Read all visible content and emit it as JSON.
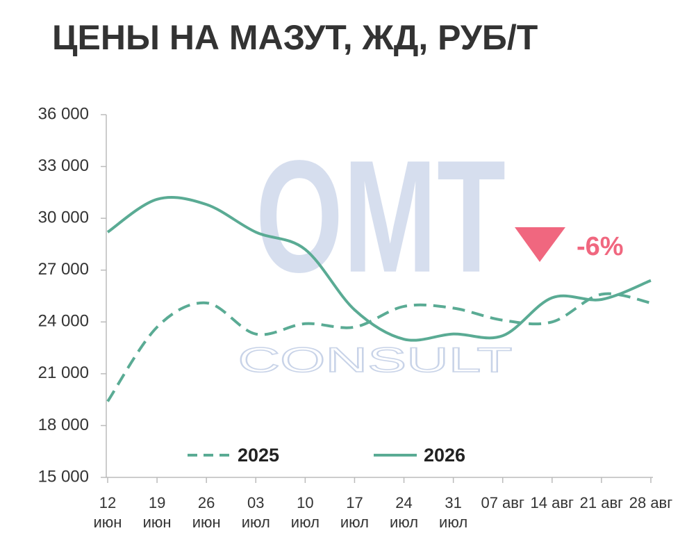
{
  "chart_data": {
    "type": "line",
    "title": "ЦЕНЫ НА МАЗУТ, ЖД, РУБ/Т",
    "categories": [
      "12 июн",
      "19 июн",
      "26 июн",
      "03 июл",
      "10 июл",
      "17 июл",
      "24 июл",
      "31 июл",
      "07 авг",
      "14 авг",
      "21 авг",
      "28 авг"
    ],
    "series": [
      {
        "name": "2025",
        "color": "#5aab94",
        "dashed": true,
        "values": [
          19400,
          23700,
          25100,
          23300,
          23900,
          23700,
          24900,
          24800,
          24100,
          24000,
          25600,
          25100
        ]
      },
      {
        "name": "2026",
        "color": "#5aab94",
        "dashed": false,
        "values": [
          29200,
          31100,
          30800,
          29200,
          28200,
          24700,
          23000,
          23300,
          23200,
          25400,
          25300,
          26400
        ]
      }
    ],
    "ylim": [
      15000,
      36000
    ],
    "yticks": [
      {
        "value": 15000,
        "label": "15 000"
      },
      {
        "value": 18000,
        "label": "18 000"
      },
      {
        "value": 21000,
        "label": "21 000"
      },
      {
        "value": 24000,
        "label": "24 000"
      },
      {
        "value": 27000,
        "label": "27 000"
      },
      {
        "value": 30000,
        "label": "30 000"
      },
      {
        "value": 33000,
        "label": "33 000"
      },
      {
        "value": 36000,
        "label": "36 000"
      }
    ],
    "grid": false,
    "legend": "bottom",
    "annotation": "-6%",
    "annotation_color": "#f0677f",
    "watermark": "OMT",
    "watermark_sub": "CONSULT"
  }
}
